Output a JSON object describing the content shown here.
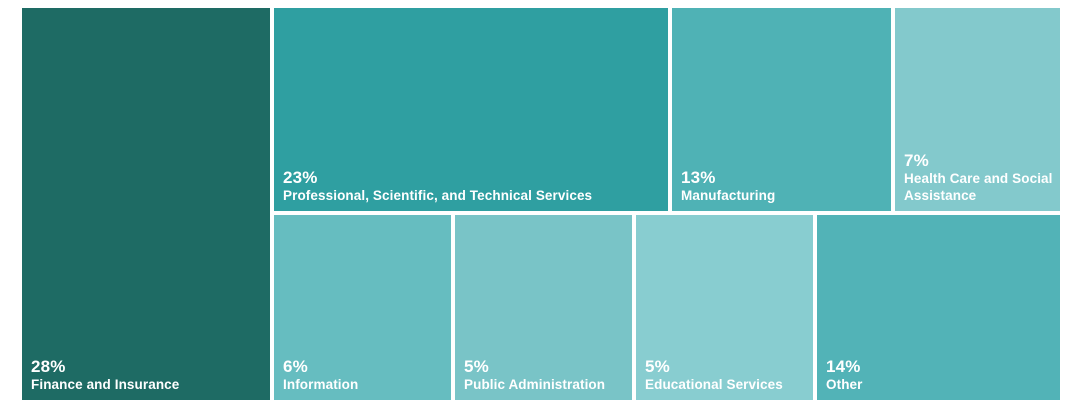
{
  "chart_data": {
    "type": "treemap",
    "title": "",
    "unit": "percent",
    "legend": "none",
    "items": [
      {
        "label": "Finance and Insurance",
        "pct": "28%",
        "value": 28,
        "color": "#1E6B64"
      },
      {
        "label": "Professional, Scientific, and Technical Services",
        "pct": "23%",
        "value": 23,
        "color": "#2F9FA1"
      },
      {
        "label": "Manufacturing",
        "pct": "13%",
        "value": 13,
        "color": "#4FB2B5"
      },
      {
        "label": "Health Care and Social Assistance",
        "pct": "7%",
        "value": 7,
        "color": "#83C9CC"
      },
      {
        "label": "Information",
        "pct": "6%",
        "value": 6,
        "color": "#66BDC0"
      },
      {
        "label": "Public Administration",
        "pct": "5%",
        "value": 5,
        "color": "#79C4C7"
      },
      {
        "label": "Educational Services",
        "pct": "5%",
        "value": 5,
        "color": "#88CDD0"
      },
      {
        "label": "Other",
        "pct": "14%",
        "value": 14,
        "color": "#52B3B7"
      }
    ]
  }
}
